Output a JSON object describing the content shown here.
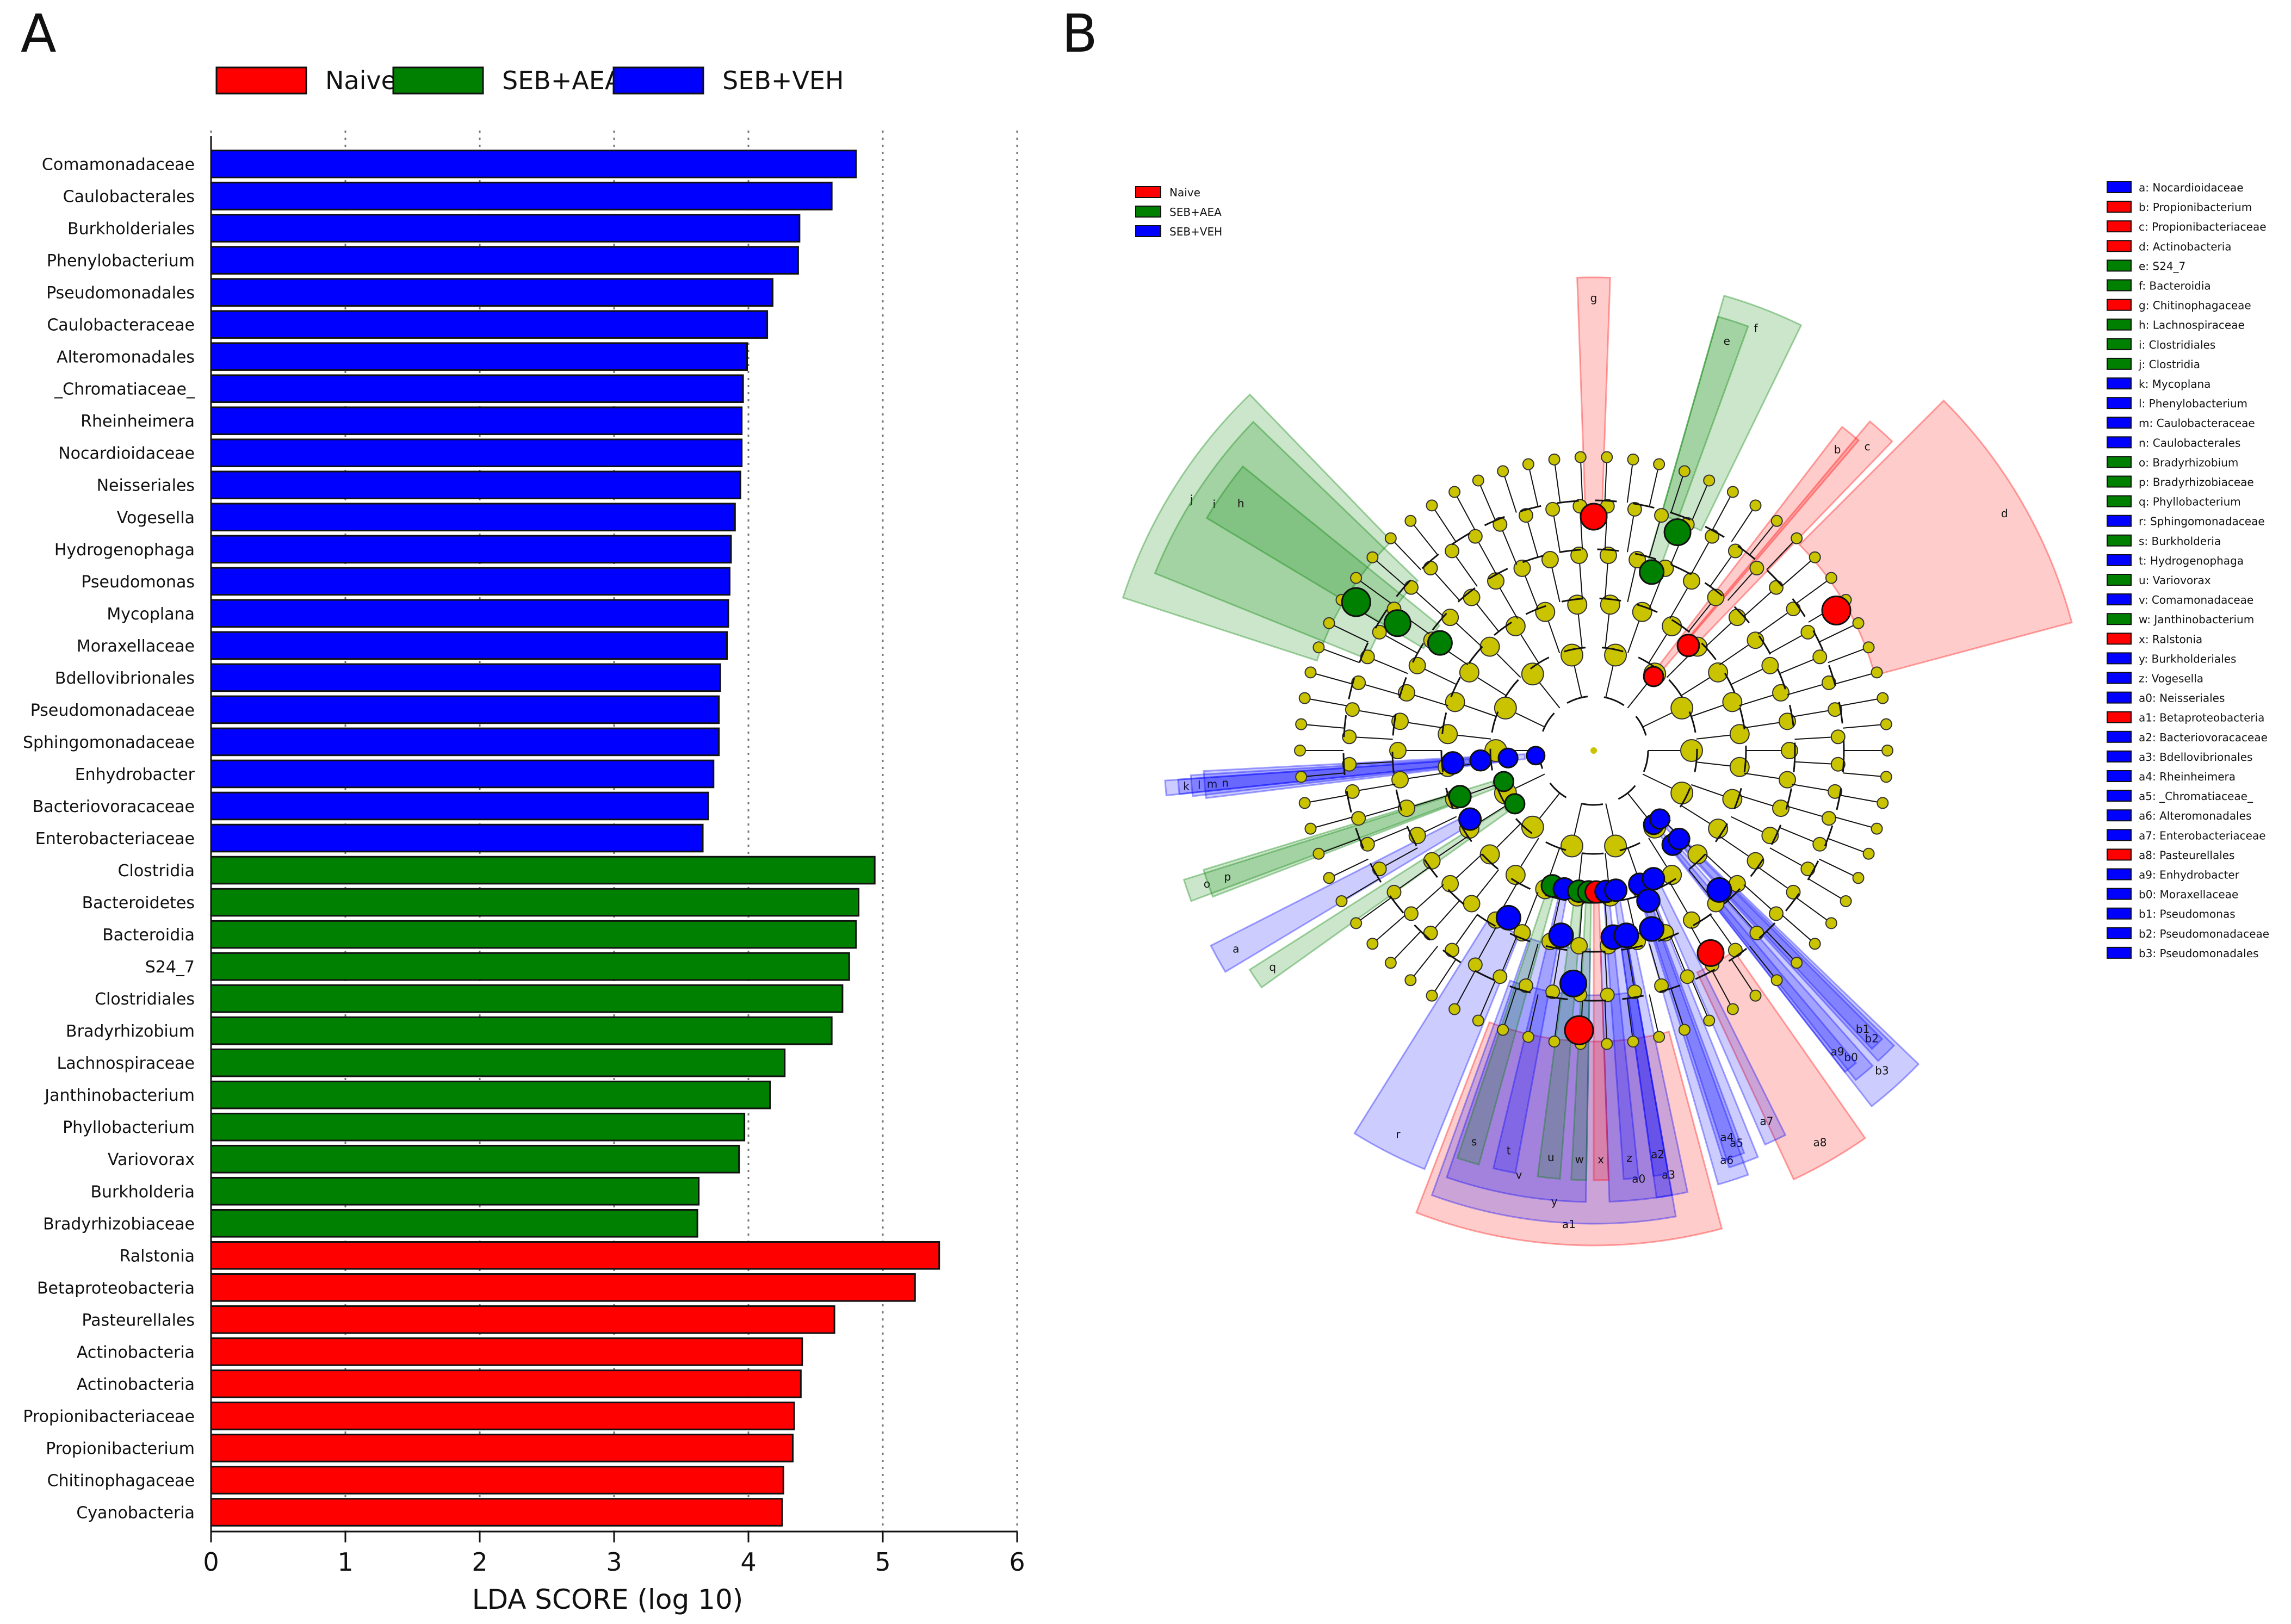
{
  "panel_a_label": "A",
  "panel_b_label": "B",
  "colors": {
    "Naive": "#ff0000",
    "SEB+AEA": "#008000",
    "SEB+VEH": "#0000ff",
    "node": "#c9c300"
  },
  "chart_data": [
    {
      "type": "bar",
      "orientation": "horizontal",
      "title": "",
      "xlabel": "LDA SCORE (log 10)",
      "ylabel": "",
      "xlim": [
        0,
        6
      ],
      "xticks": [
        "0",
        "1",
        "2",
        "3",
        "4",
        "5",
        "6"
      ],
      "legend": [
        "Naive",
        "SEB+AEA",
        "SEB+VEH"
      ],
      "legend_position": "top",
      "bars": [
        {
          "label": "Comamonadaceae",
          "value": 4.8,
          "group": "SEB+VEH"
        },
        {
          "label": "Caulobacterales",
          "value": 4.62,
          "group": "SEB+VEH"
        },
        {
          "label": "Burkholderiales",
          "value": 4.38,
          "group": "SEB+VEH"
        },
        {
          "label": "Phenylobacterium",
          "value": 4.37,
          "group": "SEB+VEH"
        },
        {
          "label": "Pseudomonadales",
          "value": 4.18,
          "group": "SEB+VEH"
        },
        {
          "label": "Caulobacteraceae",
          "value": 4.14,
          "group": "SEB+VEH"
        },
        {
          "label": "Alteromonadales",
          "value": 3.99,
          "group": "SEB+VEH"
        },
        {
          "label": "_Chromatiaceae_",
          "value": 3.96,
          "group": "SEB+VEH"
        },
        {
          "label": "Rheinheimera",
          "value": 3.95,
          "group": "SEB+VEH"
        },
        {
          "label": "Nocardioidaceae",
          "value": 3.95,
          "group": "SEB+VEH"
        },
        {
          "label": "Neisseriales",
          "value": 3.94,
          "group": "SEB+VEH"
        },
        {
          "label": "Vogesella",
          "value": 3.9,
          "group": "SEB+VEH"
        },
        {
          "label": "Hydrogenophaga",
          "value": 3.87,
          "group": "SEB+VEH"
        },
        {
          "label": "Pseudomonas",
          "value": 3.86,
          "group": "SEB+VEH"
        },
        {
          "label": "Mycoplana",
          "value": 3.85,
          "group": "SEB+VEH"
        },
        {
          "label": "Moraxellaceae",
          "value": 3.84,
          "group": "SEB+VEH"
        },
        {
          "label": "Bdellovibrionales",
          "value": 3.79,
          "group": "SEB+VEH"
        },
        {
          "label": "Pseudomonadaceae",
          "value": 3.78,
          "group": "SEB+VEH"
        },
        {
          "label": "Sphingomonadaceae",
          "value": 3.78,
          "group": "SEB+VEH"
        },
        {
          "label": "Enhydrobacter",
          "value": 3.74,
          "group": "SEB+VEH"
        },
        {
          "label": "Bacteriovoracaceae",
          "value": 3.7,
          "group": "SEB+VEH"
        },
        {
          "label": "Enterobacteriaceae",
          "value": 3.66,
          "group": "SEB+VEH"
        },
        {
          "label": "Clostridia",
          "value": 4.94,
          "group": "SEB+AEA"
        },
        {
          "label": "Bacteroidetes",
          "value": 4.82,
          "group": "SEB+AEA"
        },
        {
          "label": "Bacteroidia",
          "value": 4.8,
          "group": "SEB+AEA"
        },
        {
          "label": "S24_7",
          "value": 4.75,
          "group": "SEB+AEA"
        },
        {
          "label": "Clostridiales",
          "value": 4.7,
          "group": "SEB+AEA"
        },
        {
          "label": "Bradyrhizobium",
          "value": 4.62,
          "group": "SEB+AEA"
        },
        {
          "label": "Lachnospiraceae",
          "value": 4.27,
          "group": "SEB+AEA"
        },
        {
          "label": "Janthinobacterium",
          "value": 4.16,
          "group": "SEB+AEA"
        },
        {
          "label": "Phyllobacterium",
          "value": 3.97,
          "group": "SEB+AEA"
        },
        {
          "label": "Variovorax",
          "value": 3.93,
          "group": "SEB+AEA"
        },
        {
          "label": "Burkholderia",
          "value": 3.63,
          "group": "SEB+AEA"
        },
        {
          "label": "Bradyrhizobiaceae",
          "value": 3.62,
          "group": "SEB+AEA"
        },
        {
          "label": "Ralstonia",
          "value": 5.42,
          "group": "Naive"
        },
        {
          "label": "Betaproteobacteria",
          "value": 5.24,
          "group": "Naive"
        },
        {
          "label": "Pasteurellales",
          "value": 4.64,
          "group": "Naive"
        },
        {
          "label": "Actinobacteria",
          "value": 4.4,
          "group": "Naive"
        },
        {
          "label": "Actinobacteria",
          "value": 4.39,
          "group": "Naive"
        },
        {
          "label": "Propionibacteriaceae",
          "value": 4.34,
          "group": "Naive"
        },
        {
          "label": "Propionibacterium",
          "value": 4.33,
          "group": "Naive"
        },
        {
          "label": "Chitinophagaceae",
          "value": 4.26,
          "group": "Naive"
        },
        {
          "label": "Cyanobacteria",
          "value": 4.25,
          "group": "Naive"
        }
      ]
    },
    {
      "type": "cladogram",
      "title": "",
      "legend": [
        "Naive",
        "SEB+AEA",
        "SEB+VEH"
      ],
      "legend_position": "top-left",
      "key_legend_position": "right",
      "key_legend": [
        {
          "text": "a: Nocardioidaceae",
          "group": "SEB+VEH"
        },
        {
          "text": "b: Propionibacterium",
          "group": "Naive"
        },
        {
          "text": "c: Propionibacteriaceae",
          "group": "Naive"
        },
        {
          "text": "d: Actinobacteria",
          "group": "Naive"
        },
        {
          "text": "e: S24_7",
          "group": "SEB+AEA"
        },
        {
          "text": "f: Bacteroidia",
          "group": "SEB+AEA"
        },
        {
          "text": "g: Chitinophagaceae",
          "group": "Naive"
        },
        {
          "text": "h: Lachnospiraceae",
          "group": "SEB+AEA"
        },
        {
          "text": "i: Clostridiales",
          "group": "SEB+AEA"
        },
        {
          "text": "j: Clostridia",
          "group": "SEB+AEA"
        },
        {
          "text": "k: Mycoplana",
          "group": "SEB+VEH"
        },
        {
          "text": "l: Phenylobacterium",
          "group": "SEB+VEH"
        },
        {
          "text": "m: Caulobacteraceae",
          "group": "SEB+VEH"
        },
        {
          "text": "n: Caulobacterales",
          "group": "SEB+VEH"
        },
        {
          "text": "o: Bradyrhizobium",
          "group": "SEB+AEA"
        },
        {
          "text": "p: Bradyrhizobiaceae",
          "group": "SEB+AEA"
        },
        {
          "text": "q: Phyllobacterium",
          "group": "SEB+AEA"
        },
        {
          "text": "r: Sphingomonadaceae",
          "group": "SEB+VEH"
        },
        {
          "text": "s: Burkholderia",
          "group": "SEB+AEA"
        },
        {
          "text": "t: Hydrogenophaga",
          "group": "SEB+VEH"
        },
        {
          "text": "u: Variovorax",
          "group": "SEB+AEA"
        },
        {
          "text": "v: Comamonadaceae",
          "group": "SEB+VEH"
        },
        {
          "text": "w: Janthinobacterium",
          "group": "SEB+AEA"
        },
        {
          "text": "x: Ralstonia",
          "group": "Naive"
        },
        {
          "text": "y: Burkholderiales",
          "group": "SEB+VEH"
        },
        {
          "text": "z: Vogesella",
          "group": "SEB+VEH"
        },
        {
          "text": "a0: Neisseriales",
          "group": "SEB+VEH"
        },
        {
          "text": "a1: Betaproteobacteria",
          "group": "Naive"
        },
        {
          "text": "a2: Bacteriovoracaceae",
          "group": "SEB+VEH"
        },
        {
          "text": "a3: Bdellovibrionales",
          "group": "SEB+VEH"
        },
        {
          "text": "a4: Rheinheimera",
          "group": "SEB+VEH"
        },
        {
          "text": "a5: _Chromatiaceae_",
          "group": "SEB+VEH"
        },
        {
          "text": "a6: Alteromonadales",
          "group": "SEB+VEH"
        },
        {
          "text": "a7: Enterobacteriaceae",
          "group": "SEB+VEH"
        },
        {
          "text": "a8: Pasteurellales",
          "group": "Naive"
        },
        {
          "text": "a9: Enhydrobacter",
          "group": "SEB+VEH"
        },
        {
          "text": "b0: Moraxellaceae",
          "group": "SEB+VEH"
        },
        {
          "text": "b1: Pseudomonas",
          "group": "SEB+VEH"
        },
        {
          "text": "b2: Pseudomonadaceae",
          "group": "SEB+VEH"
        },
        {
          "text": "b3: Pseudomonadales",
          "group": "SEB+VEH"
        }
      ],
      "clades": [
        {
          "label": "a",
          "angle": 241,
          "depth": 4,
          "span": 4,
          "group": "SEB+VEH"
        },
        {
          "label": "b",
          "angle": 39,
          "depth": 5,
          "span": 3,
          "group": "Naive"
        },
        {
          "label": "c",
          "angle": 42,
          "depth": 4,
          "span": 4,
          "group": "Naive"
        },
        {
          "label": "d",
          "angle": 60,
          "depth": 1,
          "span": 30,
          "group": "Naive"
        },
        {
          "label": "e",
          "angle": 18,
          "depth": 3,
          "span": 4,
          "group": "SEB+AEA"
        },
        {
          "label": "f",
          "angle": 21,
          "depth": 2,
          "span": 10,
          "group": "SEB+AEA"
        },
        {
          "label": "g",
          "angle": 0,
          "depth": 2,
          "span": 4,
          "group": "Naive"
        },
        {
          "label": "h",
          "angle": 305,
          "depth": 3,
          "span": 8,
          "group": "SEB+AEA"
        },
        {
          "label": "i",
          "angle": 303,
          "depth": 2,
          "span": 22,
          "group": "SEB+AEA"
        },
        {
          "label": "j",
          "angle": 302,
          "depth": 1,
          "span": 28,
          "group": "SEB+AEA"
        },
        {
          "label": "k",
          "angle": 265,
          "depth": 4,
          "span": 2,
          "group": "SEB+VEH"
        },
        {
          "label": "l",
          "angle": 265,
          "depth": 4.6,
          "span": 2,
          "group": "SEB+VEH"
        },
        {
          "label": "m",
          "angle": 265,
          "depth": 5.2,
          "span": 3,
          "group": "SEB+VEH"
        },
        {
          "label": "n",
          "angle": 265,
          "depth": 5.8,
          "span": 4,
          "group": "SEB+VEH"
        },
        {
          "label": "o",
          "angle": 251,
          "depth": 4,
          "span": 3,
          "group": "SEB+AEA"
        },
        {
          "label": "p",
          "angle": 251,
          "depth": 5,
          "span": 4,
          "group": "SEB+AEA"
        },
        {
          "label": "q",
          "angle": 236,
          "depth": 5,
          "span": 3,
          "group": "SEB+AEA"
        },
        {
          "label": "r",
          "angle": 207,
          "depth": 3,
          "span": 10,
          "group": "SEB+VEH"
        },
        {
          "label": "s",
          "angle": 197,
          "depth": 4,
          "span": 3,
          "group": "SEB+AEA"
        },
        {
          "label": "t",
          "angle": 192,
          "depth": 4,
          "span": 3,
          "group": "SEB+VEH"
        },
        {
          "label": "u",
          "angle": 186,
          "depth": 4,
          "span": 3,
          "group": "SEB+AEA"
        },
        {
          "label": "v",
          "angle": 190,
          "depth": 3,
          "span": 18,
          "group": "SEB+VEH"
        },
        {
          "label": "w",
          "angle": 182,
          "depth": 4,
          "span": 2,
          "group": "SEB+AEA"
        },
        {
          "label": "x",
          "angle": 179,
          "depth": 4,
          "span": 2,
          "group": "Naive"
        },
        {
          "label": "y",
          "angle": 185,
          "depth": 2,
          "span": 30,
          "group": "SEB+VEH"
        },
        {
          "label": "z",
          "angle": 175,
          "depth": 4,
          "span": 2,
          "group": "SEB+VEH"
        },
        {
          "label": "a0",
          "angle": 174,
          "depth": 3,
          "span": 8,
          "group": "SEB+VEH"
        },
        {
          "label": "a1",
          "angle": 183,
          "depth": 1,
          "span": 36,
          "group": "Naive"
        },
        {
          "label": "a2",
          "angle": 171,
          "depth": 4,
          "span": 2,
          "group": "SEB+VEH"
        },
        {
          "label": "a3",
          "angle": 170,
          "depth": 3,
          "span": 4,
          "group": "SEB+VEH"
        },
        {
          "label": "a4",
          "angle": 161,
          "depth": 4,
          "span": 3,
          "group": "SEB+VEH"
        },
        {
          "label": "a5",
          "angle": 160,
          "depth": 3.6,
          "span": 4,
          "group": "SEB+VEH"
        },
        {
          "label": "a6",
          "angle": 162,
          "depth": 3,
          "span": 4,
          "group": "SEB+VEH"
        },
        {
          "label": "a7",
          "angle": 155,
          "depth": 4,
          "span": 3,
          "group": "SEB+VEH"
        },
        {
          "label": "a8",
          "angle": 150,
          "depth": 2,
          "span": 10,
          "group": "Naive"
        },
        {
          "label": "a9",
          "angle": 141,
          "depth": 5,
          "span": 2,
          "group": "SEB+VEH"
        },
        {
          "label": "b0",
          "angle": 140,
          "depth": 4.4,
          "span": 3,
          "group": "SEB+VEH"
        },
        {
          "label": "b1",
          "angle": 136,
          "depth": 5,
          "span": 2,
          "group": "SEB+VEH"
        },
        {
          "label": "b2",
          "angle": 136,
          "depth": 4.4,
          "span": 3,
          "group": "SEB+VEH"
        },
        {
          "label": "b3",
          "angle": 138,
          "depth": 3,
          "span": 8,
          "group": "SEB+VEH"
        }
      ]
    }
  ]
}
